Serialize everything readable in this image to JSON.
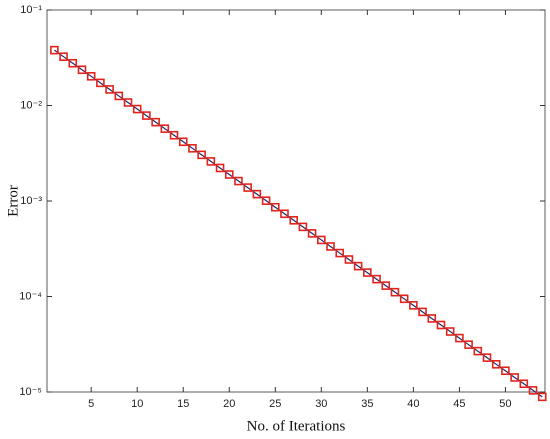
{
  "chart_data": {
    "type": "line",
    "yscale": "log",
    "xlabel": "No. of Iterations",
    "ylabel": "Error",
    "x": [
      1,
      2,
      3,
      4,
      5,
      6,
      7,
      8,
      9,
      10,
      11,
      12,
      13,
      14,
      15,
      16,
      17,
      18,
      19,
      20,
      21,
      22,
      23,
      24,
      25,
      26,
      27,
      28,
      29,
      30,
      31,
      32,
      33,
      34,
      35,
      36,
      37,
      38,
      39,
      40,
      41,
      42,
      43,
      44,
      45,
      46,
      47,
      48,
      49,
      50,
      51,
      52,
      53,
      54
    ],
    "series": [
      {
        "color": "#1f2a6b",
        "marker_color": "#e3231b",
        "values": [
          0.038,
          0.03245,
          0.02772,
          0.02367,
          0.02021,
          0.01726,
          0.01474,
          0.01259,
          0.01075,
          0.009181,
          0.007841,
          0.006696,
          0.005718,
          0.004883,
          0.00417,
          0.003562,
          0.003042,
          0.002598,
          0.002218,
          0.001894,
          0.001618,
          0.001382,
          0.00118,
          0.001008,
          0.000861,
          0.000735,
          0.000628,
          0.000536,
          0.000458,
          0.000391,
          0.000334,
          0.000285,
          0.000244,
          0.000208,
          0.000178,
          0.000152,
          0.00013,
          0.000111,
          9.46e-05,
          8.08e-05,
          6.9e-05,
          5.89e-05,
          5.03e-05,
          4.3e-05,
          3.67e-05,
          3.13e-05,
          2.68e-05,
          2.29e-05,
          1.95e-05,
          1.67e-05,
          1.42e-05,
          1.22e-05,
          1.04e-05,
          8.9e-06
        ]
      }
    ],
    "xlim": [
      0.2,
      54.3
    ],
    "ylim": [
      1e-05,
      0.1
    ],
    "xticks": [
      5,
      10,
      15,
      20,
      25,
      30,
      35,
      40,
      45,
      50
    ],
    "yticks": [
      {
        "value": 1e-05,
        "label": "10⁻⁵"
      },
      {
        "value": 0.0001,
        "label": "10⁻⁴"
      },
      {
        "value": 0.001,
        "label": "10⁻³"
      },
      {
        "value": 0.01,
        "label": "10⁻²"
      },
      {
        "value": 0.1,
        "label": "10⁻¹"
      }
    ]
  }
}
